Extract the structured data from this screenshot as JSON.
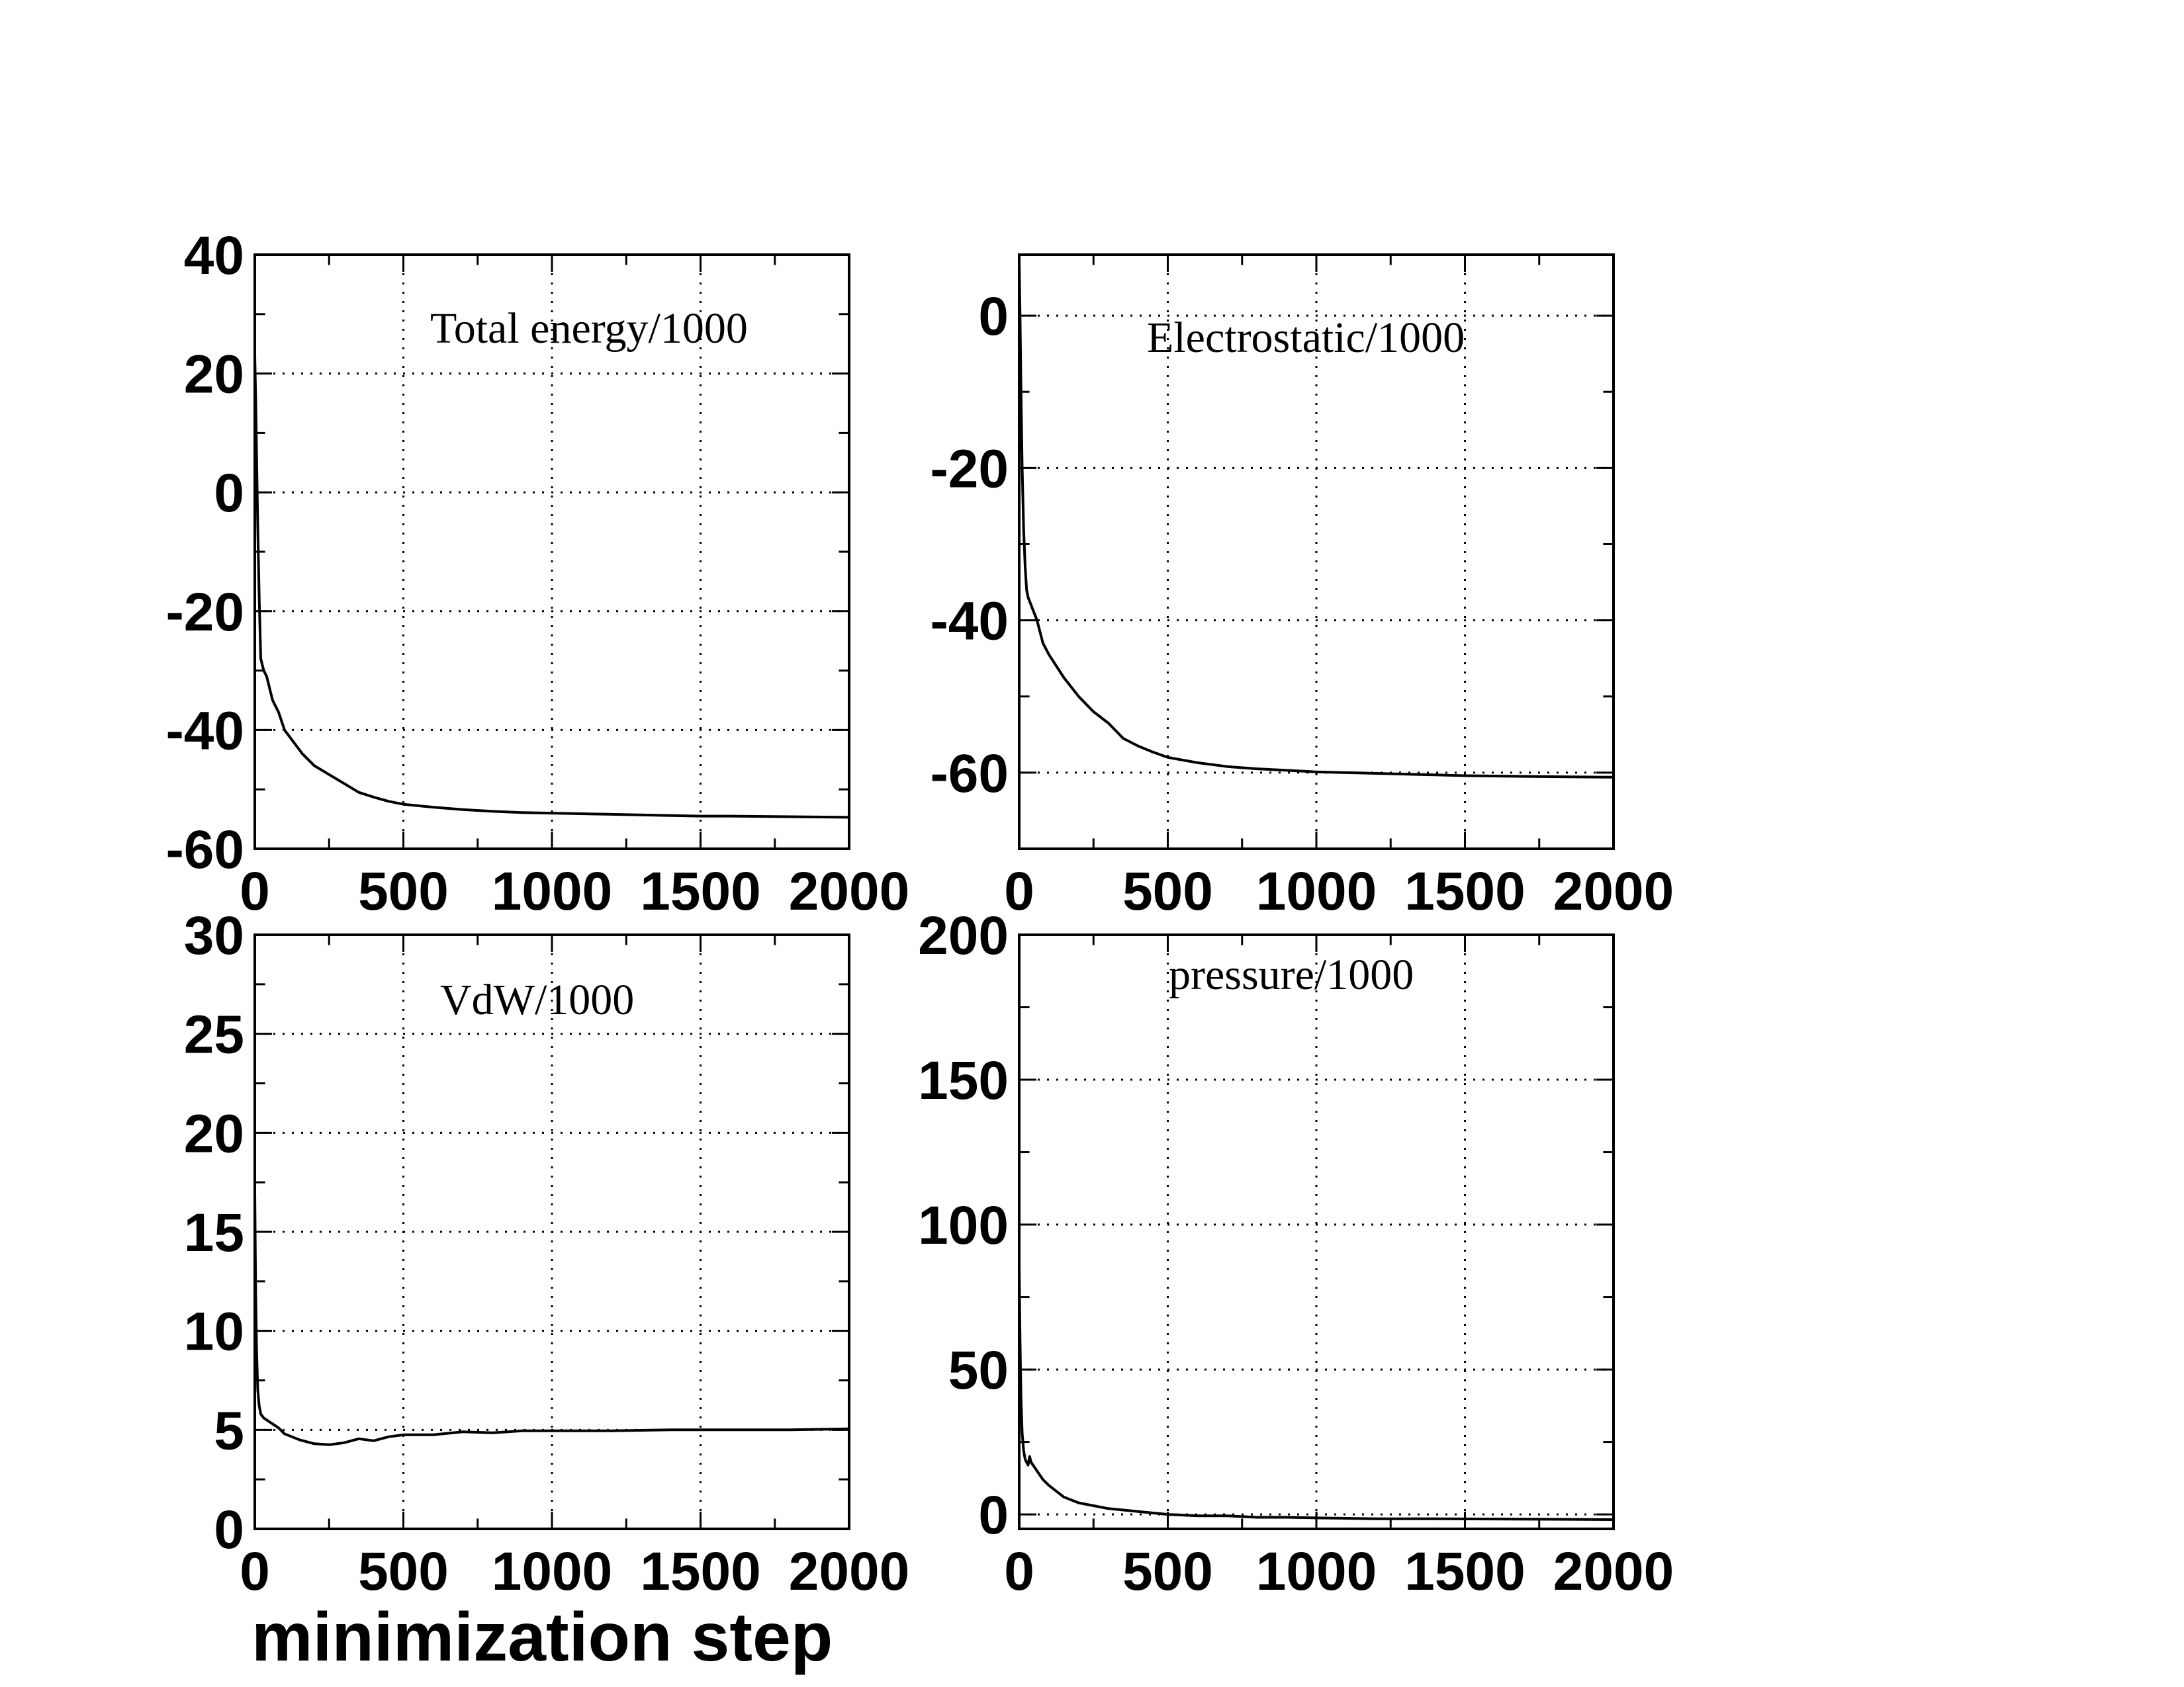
{
  "figure": {
    "xlabel": "minimization step"
  },
  "chart_data": [
    {
      "type": "line",
      "title": "Total energy/1000",
      "xlabel": "",
      "ylabel": "",
      "xlim": [
        0,
        2000
      ],
      "ylim": [
        -60,
        40
      ],
      "xticks": [
        0,
        500,
        1000,
        1500,
        2000
      ],
      "yticks": [
        -60,
        -40,
        -20,
        0,
        20,
        40
      ],
      "grid": true,
      "series": [
        {
          "x": [
            0,
            3,
            6,
            10,
            15,
            20,
            30,
            40,
            50,
            60,
            80,
            100,
            130,
            160,
            200,
            250,
            300,
            350,
            400,
            450,
            500,
            600,
            700,
            800,
            900,
            1000,
            1200,
            1400,
            1500,
            1600,
            1800,
            2000
          ],
          "y": [
            23,
            16,
            6,
            -6,
            -18,
            -28,
            -30,
            -31,
            -33,
            -35,
            -37,
            -40,
            -42,
            -44,
            -46,
            -47.5,
            -49,
            -50.5,
            -51.3,
            -52,
            -52.5,
            -53,
            -53.4,
            -53.7,
            -53.9,
            -54,
            -54.2,
            -54.4,
            -54.5,
            -54.5,
            -54.6,
            -54.7
          ]
        }
      ]
    },
    {
      "type": "line",
      "title": "Electrostatic/1000",
      "xlabel": "",
      "ylabel": "",
      "xlim": [
        0,
        2000
      ],
      "ylim": [
        -70,
        8
      ],
      "xticks": [
        0,
        500,
        1000,
        1500,
        2000
      ],
      "yticks": [
        -60,
        -40,
        -20,
        0
      ],
      "grid": true,
      "series": [
        {
          "x": [
            0,
            3,
            6,
            10,
            15,
            20,
            25,
            30,
            40,
            60,
            80,
            100,
            150,
            200,
            250,
            300,
            350,
            400,
            450,
            500,
            600,
            700,
            800,
            900,
            1000,
            1200,
            1400,
            1500,
            1700,
            2000
          ],
          "y": [
            7,
            0,
            -10,
            -20,
            -28,
            -33,
            -36,
            -37,
            -38,
            -40,
            -43,
            -44.5,
            -47.5,
            -50,
            -52,
            -53.5,
            -55.5,
            -56.5,
            -57.3,
            -58,
            -58.7,
            -59.2,
            -59.5,
            -59.7,
            -59.9,
            -60.1,
            -60.3,
            -60.4,
            -60.5,
            -60.6
          ]
        }
      ]
    },
    {
      "type": "line",
      "title": "VdW/1000",
      "xlabel": "minimization step",
      "ylabel": "",
      "xlim": [
        0,
        2000
      ],
      "ylim": [
        0,
        30
      ],
      "xticks": [
        0,
        500,
        1000,
        1500,
        2000
      ],
      "yticks": [
        0,
        5,
        10,
        15,
        20,
        25,
        30
      ],
      "grid": true,
      "series": [
        {
          "x": [
            0,
            3,
            6,
            10,
            15,
            20,
            30,
            50,
            80,
            100,
            150,
            200,
            250,
            300,
            350,
            400,
            450,
            500,
            600,
            700,
            800,
            900,
            1000,
            1200,
            1400,
            1600,
            1800,
            2000
          ],
          "y": [
            17,
            12,
            9,
            7,
            6.2,
            5.8,
            5.6,
            5.4,
            5.1,
            4.8,
            4.5,
            4.3,
            4.25,
            4.35,
            4.55,
            4.45,
            4.65,
            4.75,
            4.75,
            4.9,
            4.85,
            4.95,
            4.95,
            4.95,
            5.0,
            5.0,
            5.0,
            5.05
          ]
        }
      ]
    },
    {
      "type": "line",
      "title": "pressure/1000",
      "xlabel": "",
      "ylabel": "",
      "xlim": [
        0,
        2000
      ],
      "ylim": [
        -5,
        200
      ],
      "xticks": [
        0,
        500,
        1000,
        1500,
        2000
      ],
      "yticks": [
        0,
        50,
        100,
        150,
        200
      ],
      "grid": true,
      "series": [
        {
          "x": [
            0,
            3,
            6,
            10,
            15,
            20,
            30,
            35,
            40,
            60,
            80,
            100,
            150,
            200,
            250,
            300,
            400,
            500,
            600,
            700,
            800,
            900,
            1000,
            1200,
            1400,
            1600,
            1800,
            2000
          ],
          "y": [
            85,
            60,
            40,
            28,
            22,
            19,
            17,
            20,
            18,
            15,
            12,
            10,
            6,
            4,
            3,
            2,
            1,
            0,
            -0.5,
            -0.5,
            -1,
            -1,
            -1.2,
            -1.5,
            -1.5,
            -1.6,
            -1.7,
            -1.8
          ]
        }
      ]
    }
  ]
}
